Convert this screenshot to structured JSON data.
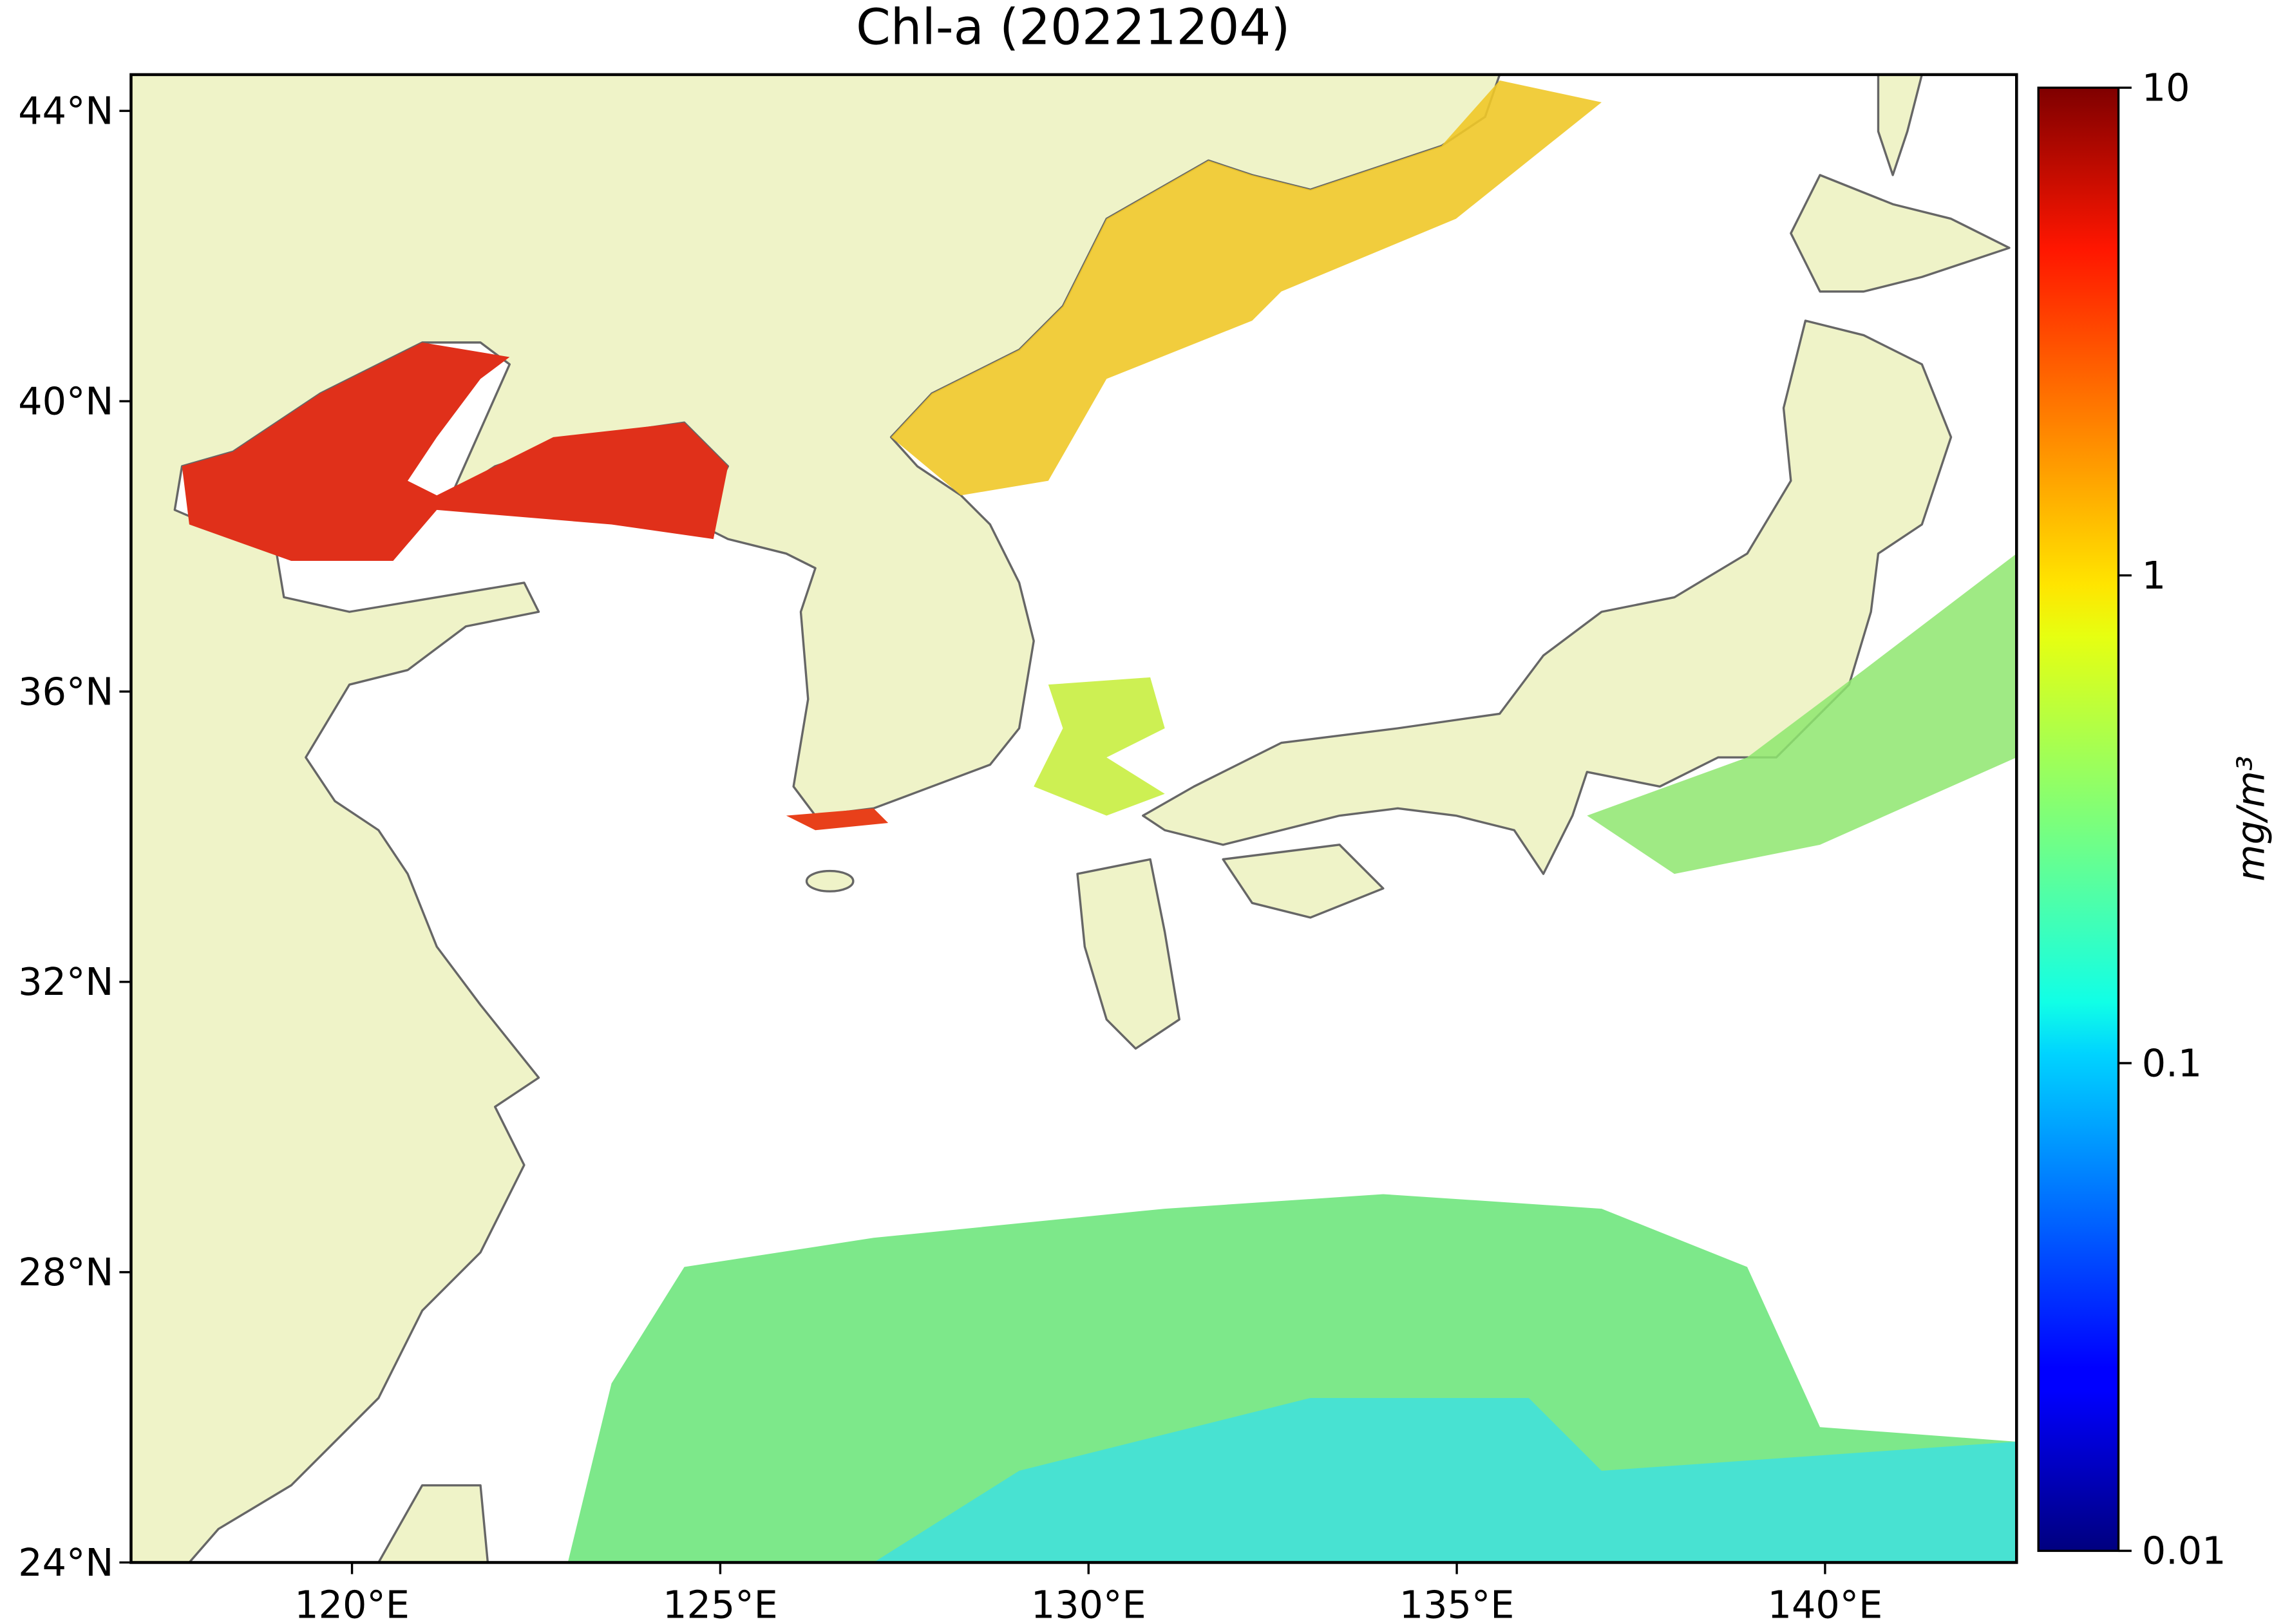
{
  "chart_data": {
    "type": "map",
    "title": "Chl-a (20221204)",
    "xlim": [
      117,
      142.6
    ],
    "ylim": [
      24,
      44.5
    ],
    "xticks": [
      {
        "value": 120,
        "label": "120°E"
      },
      {
        "value": 125,
        "label": "125°E"
      },
      {
        "value": 130,
        "label": "130°E"
      },
      {
        "value": 135,
        "label": "135°E"
      },
      {
        "value": 140,
        "label": "140°E"
      }
    ],
    "yticks": [
      {
        "value": 24,
        "label": "24°N"
      },
      {
        "value": 28,
        "label": "28°N"
      },
      {
        "value": 32,
        "label": "32°N"
      },
      {
        "value": 36,
        "label": "36°N"
      },
      {
        "value": 40,
        "label": "40°N"
      },
      {
        "value": 44,
        "label": "44°N"
      }
    ],
    "land_color": "#eff3c8",
    "colorbar": {
      "label": "mg/m³",
      "colormap": "jet",
      "log_scale": true,
      "lim": [
        0.01,
        10
      ],
      "ticks": [
        0.01,
        0.1,
        1,
        10
      ]
    }
  }
}
